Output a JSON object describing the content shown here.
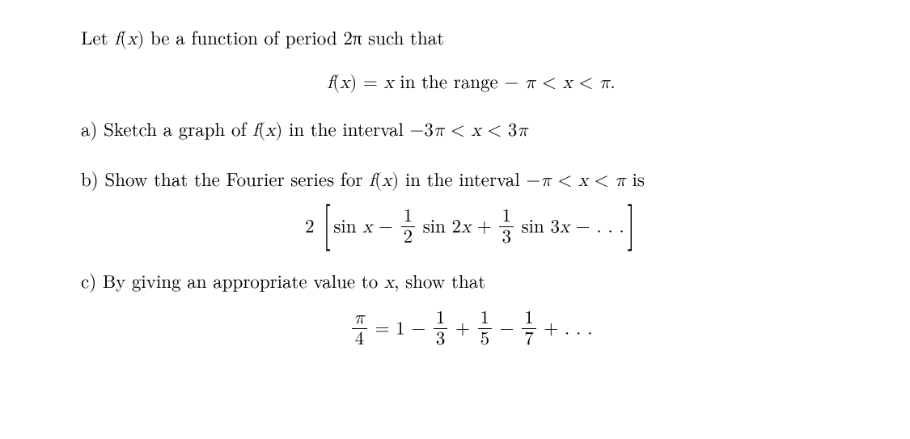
{
  "colors": {
    "text": "#000000",
    "bg": "#ffffff"
  },
  "font": {
    "size": 23,
    "family": "serif"
  },
  "intro": {
    "text_pre": "Let ",
    "fx": "f(x)",
    "text_post": " be a function of period 2π such that"
  },
  "definition": {
    "lhs": "f(x) = x",
    "mid": "  in the range  ",
    "rhs": "− π < x < π."
  },
  "part_a": {
    "label": "a) ",
    "text_pre": "Sketch a graph of ",
    "fx": "f(x)",
    "text_mid": " in the interval ",
    "range": "−3π < x < 3π"
  },
  "part_b": {
    "label": "b) ",
    "text_pre": "Show that the Fourier series for ",
    "fx": "f(x)",
    "text_mid": " in the interval ",
    "range": "−π < x < π",
    "text_post": " is"
  },
  "fourier_display": {
    "leading": "2",
    "term1": "sin x",
    "minus": " − ",
    "frac12_num": "1",
    "frac12_den": "2",
    "term2": " sin 2x",
    "plus": " + ",
    "frac13_num": "1",
    "frac13_den": "3",
    "term3": " sin 3x",
    "tail": " − . . ."
  },
  "part_c": {
    "label": "c) ",
    "text_pre": "By giving an appropriate value to ",
    "xvar": "x",
    "text_post": ", show that"
  },
  "leibniz_display": {
    "lhs_num": "π",
    "lhs_den": "4",
    "eq": " = 1 − ",
    "f1_num": "1",
    "f1_den": "3",
    "plus": " + ",
    "f2_num": "1",
    "f2_den": "5",
    "minus": " − ",
    "f3_num": "1",
    "f3_den": "7",
    "tail": " + . . ."
  }
}
